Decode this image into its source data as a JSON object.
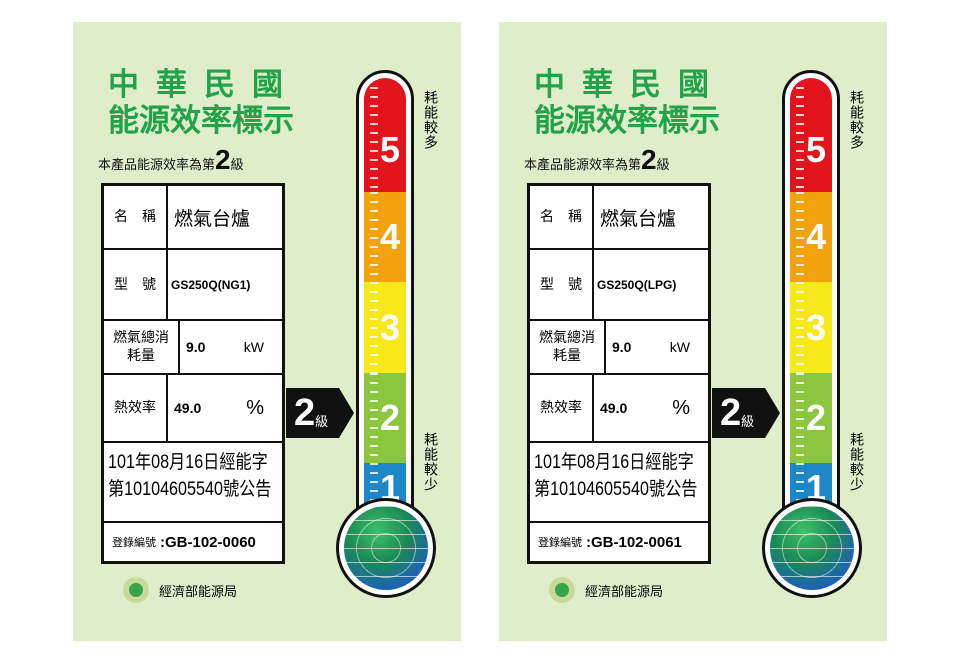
{
  "labels": [
    {
      "title_line1": "中華民國",
      "title_line2": "能源效率標示",
      "subtitle_prefix": "本產品能源效率為第",
      "grade": "2",
      "grade_suffix": "級",
      "name_key": "名　稱",
      "name_value": "燃氣台爐",
      "model_key": "型　號",
      "model_value": "GS250Q(NG1)",
      "consumption_key": "燃氣總消耗量",
      "consumption_value": "9.0",
      "consumption_unit": "kW",
      "efficiency_key": "熱效率",
      "efficiency_value": "49.0",
      "efficiency_unit": "%",
      "announcement_line1": "101年08月16日經能字",
      "announcement_line2": "第10104605540號公告",
      "reg_key": "登錄編號",
      "reg_value": ":GB-102-0060",
      "agency": "經濟部能源局",
      "scale": [
        "5",
        "4",
        "3",
        "2",
        "1"
      ],
      "more_label": "耗能較多",
      "less_label": "耗能較少"
    },
    {
      "title_line1": "中華民國",
      "title_line2": "能源效率標示",
      "subtitle_prefix": "本產品能源效率為第",
      "grade": "2",
      "grade_suffix": "級",
      "name_key": "名　稱",
      "name_value": "燃氣台爐",
      "model_key": "型　號",
      "model_value": "GS250Q(LPG)",
      "consumption_key": "燃氣總消耗量",
      "consumption_value": "9.0",
      "consumption_unit": "kW",
      "efficiency_key": "熱效率",
      "efficiency_value": "49.0",
      "efficiency_unit": "%",
      "announcement_line1": "101年08月16日經能字",
      "announcement_line2": "第10104605540號公告",
      "reg_key": "登錄編號",
      "reg_value": ":GB-102-0061",
      "agency": "經濟部能源局",
      "scale": [
        "5",
        "4",
        "3",
        "2",
        "1"
      ],
      "more_label": "耗能較多",
      "less_label": "耗能較少"
    }
  ],
  "colors": {
    "title_green": "#22a34a",
    "background": "#e0edcb",
    "grade5": "#e3141b",
    "grade4": "#f2a20c",
    "grade3": "#f7e81a",
    "grade2": "#8cc63f",
    "grade1": "#1e87c8"
  }
}
